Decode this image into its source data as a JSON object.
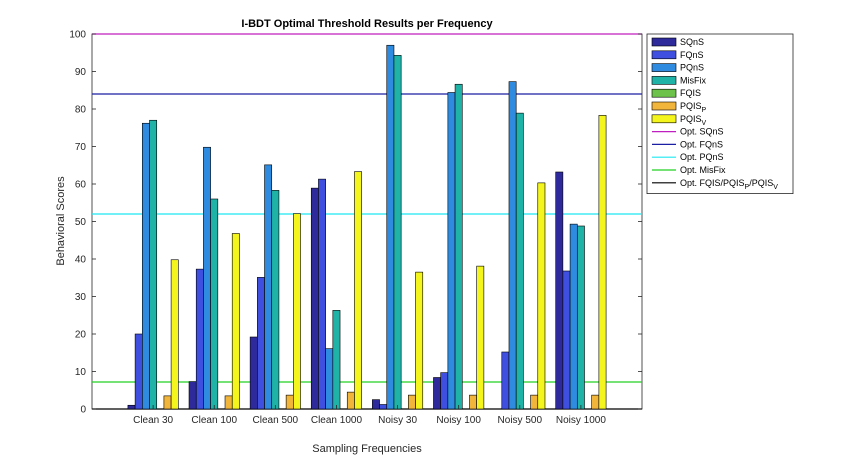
{
  "chart_data": {
    "type": "bar",
    "title": "I-BDT Optimal Threshold Results per Frequency",
    "xlabel": "Sampling Frequencies",
    "ylabel": "Behavioral Scores",
    "ylim": [
      0,
      100
    ],
    "yticks": [
      "0",
      "10",
      "20",
      "30",
      "40",
      "50",
      "60",
      "70",
      "80",
      "90",
      "100"
    ],
    "categories": [
      "Clean 30",
      "Clean 100",
      "Clean 500",
      "Clean 1000",
      "Noisy 30",
      "Noisy 100",
      "Noisy 500",
      "Noisy 1000"
    ],
    "series": [
      {
        "name": "SQnS",
        "color": "#2e2a9c",
        "values": [
          1,
          7.3,
          19.2,
          58.9,
          2.5,
          8.4,
          0,
          63.2
        ]
      },
      {
        "name": "FQnS",
        "color": "#3f4fe0",
        "values": [
          20,
          37.3,
          35.1,
          61.3,
          1.2,
          9.7,
          15.2,
          36.8
        ]
      },
      {
        "name": "PQnS",
        "color": "#2e8be0",
        "values": [
          76.2,
          69.8,
          65.1,
          16.1,
          97,
          84.4,
          87.3,
          49.3
        ]
      },
      {
        "name": "MisFix",
        "color": "#1fb3a8",
        "values": [
          77,
          56,
          58.3,
          26.3,
          94.3,
          86.6,
          78.9,
          48.8
        ]
      },
      {
        "name": "FQIS",
        "color": "#6cc24a",
        "values": [
          0,
          0,
          0,
          0,
          0,
          0,
          0,
          0
        ]
      },
      {
        "name": "PQIS",
        "sub": "P",
        "color": "#f2b53b",
        "values": [
          3.5,
          3.5,
          3.7,
          4.5,
          3.7,
          3.7,
          3.7,
          3.7
        ]
      },
      {
        "name": "PQIS",
        "sub": "V",
        "color": "#f5f51e",
        "values": [
          39.8,
          46.8,
          52.1,
          63.3,
          36.5,
          38.1,
          60.3,
          78.3
        ]
      }
    ],
    "reference_lines": [
      {
        "name": "Opt. SQnS",
        "color": "#c01fbf",
        "value": 100
      },
      {
        "name": "Opt. FQnS",
        "color": "#1b1fa3",
        "value": 84
      },
      {
        "name": "Opt. PQnS",
        "color": "#1ee8f2",
        "value": 52
      },
      {
        "name": "Opt. MisFix",
        "color": "#22d022",
        "value": 7.2
      },
      {
        "name": "Opt. FQIS/PQIS/PQIS",
        "color": "#000000",
        "value": 0
      }
    ],
    "legend_position": "outside-top-right"
  }
}
